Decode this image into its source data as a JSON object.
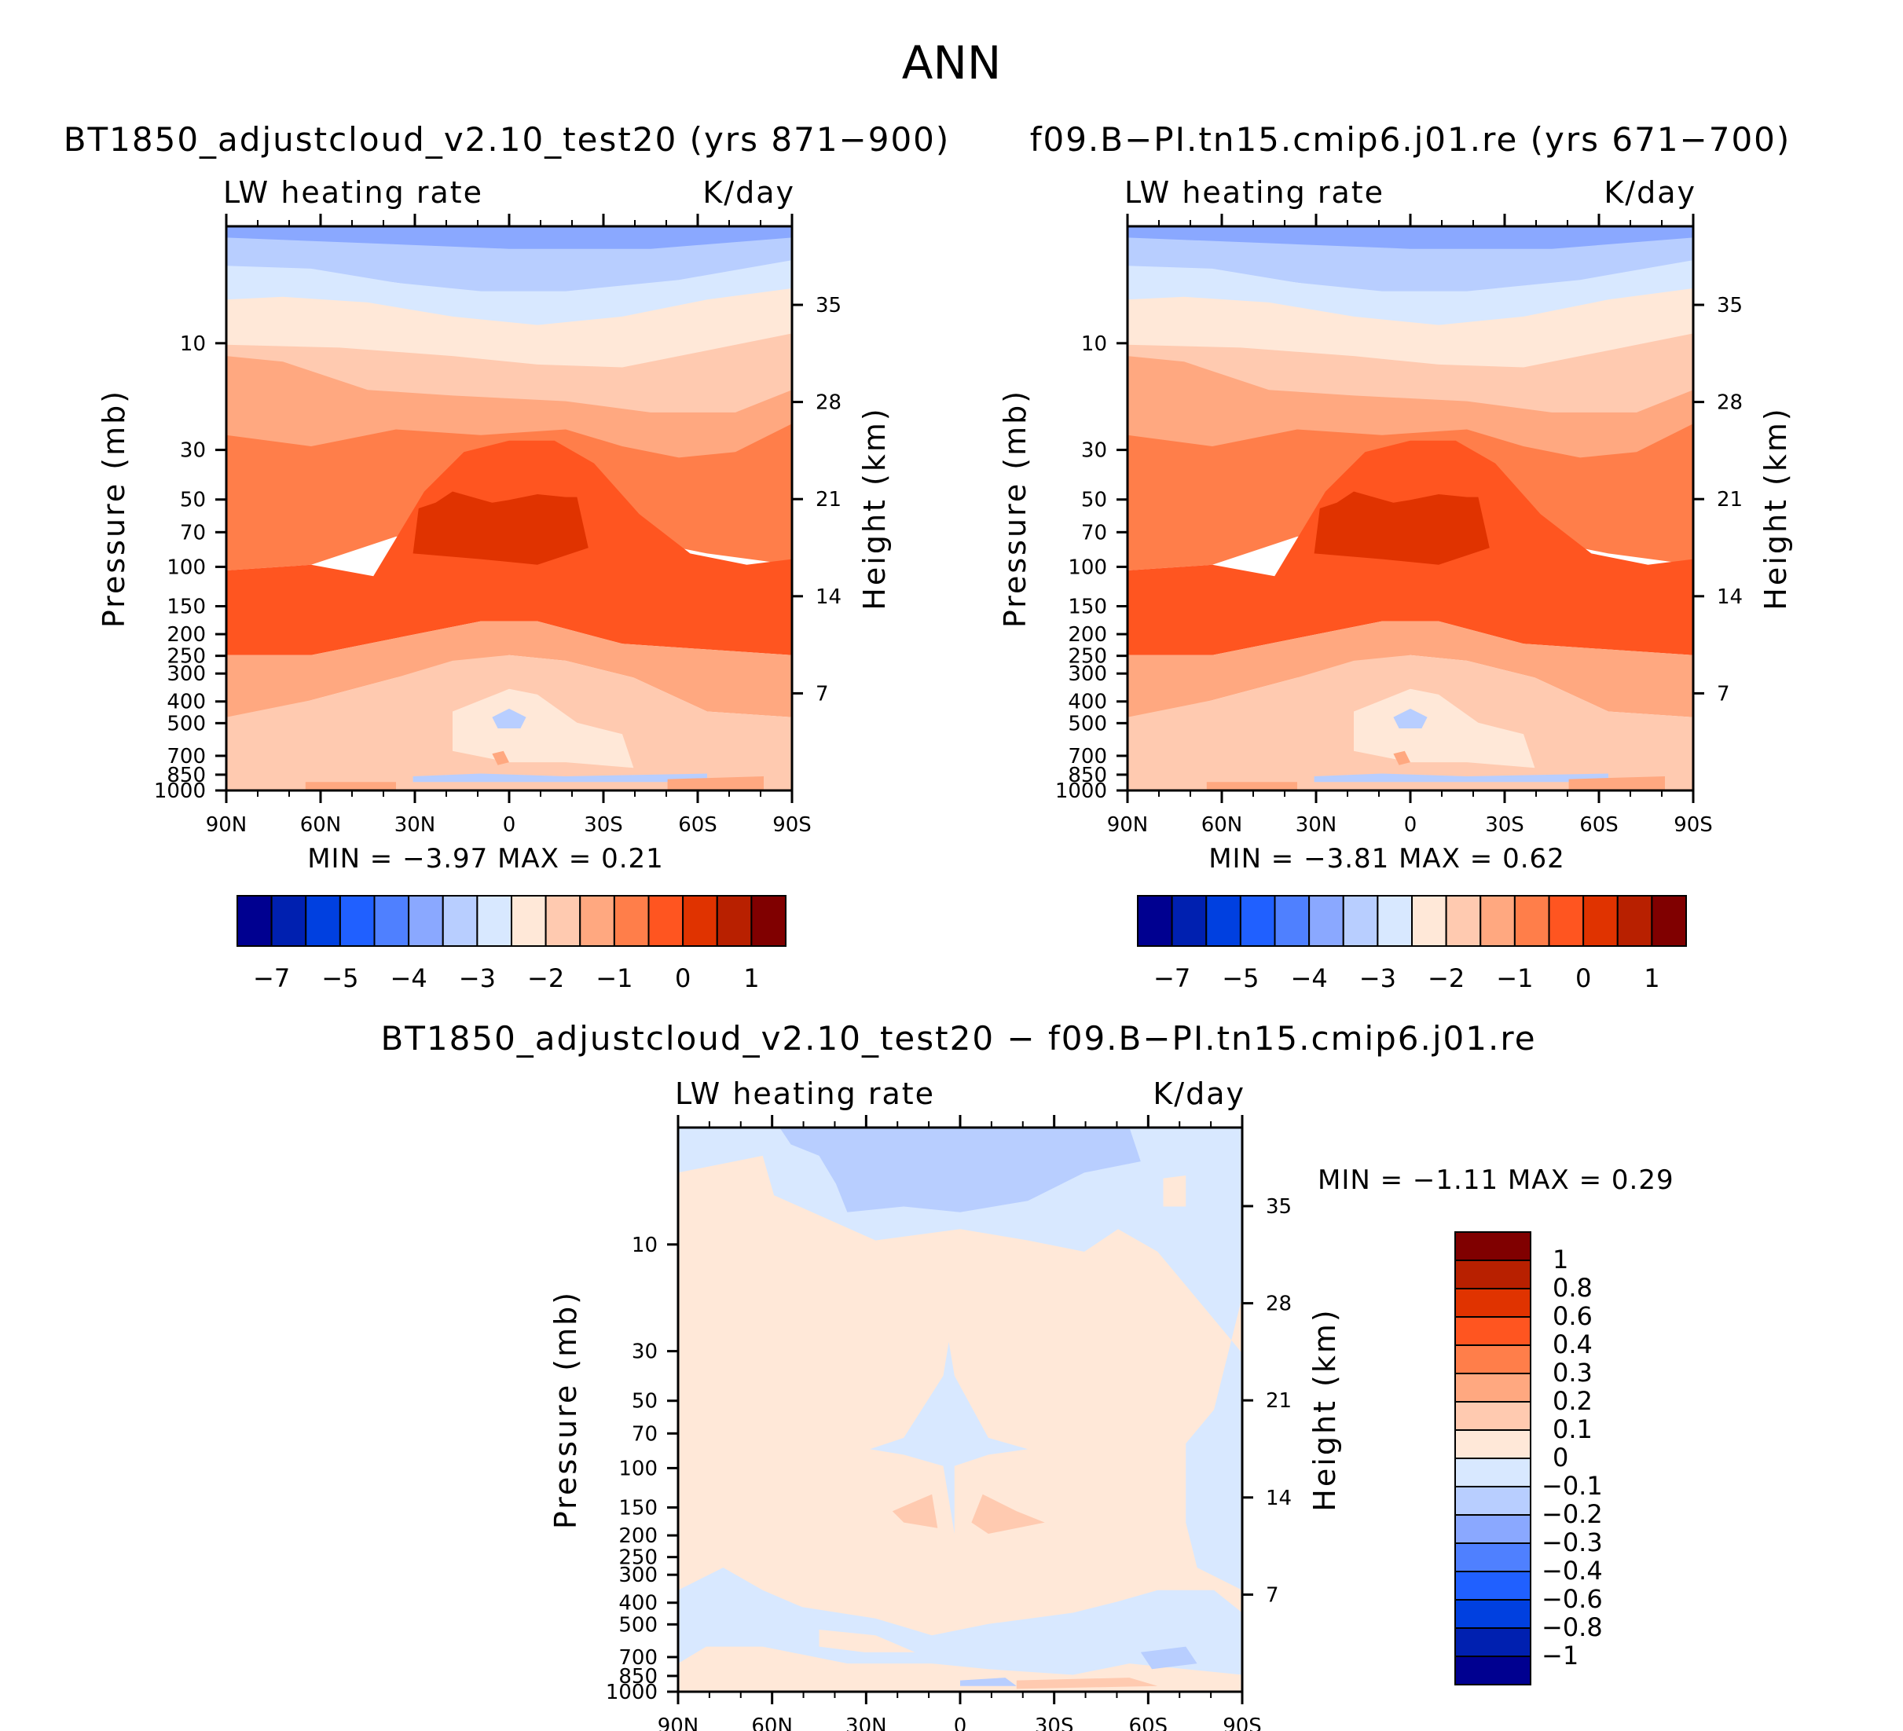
{
  "figure_title": "ANN",
  "panels": [
    {
      "id": "left",
      "title": "BT1850_adjustcloud_v2.10_test20 (yrs 871−900)",
      "left_subtitle": "LW heating rate",
      "right_subtitle": "K/day",
      "minmax_text": "MIN =   −3.97   MAX =    0.21",
      "x_ticks": [
        "90N",
        "60N",
        "30N",
        "0",
        "30S",
        "60S",
        "90S"
      ],
      "y_ticks": [
        "10",
        "30",
        "50",
        "70",
        "100",
        "150",
        "200",
        "250",
        "300",
        "400",
        "500",
        "700",
        "850",
        "1000"
      ],
      "y2_ticks": [
        "35",
        "28",
        "21",
        "14",
        "7"
      ],
      "ylabel": "Pressure (mb)",
      "y2label": "Height (km)",
      "colorbar_labels": [
        "−7",
        "−5",
        "−4",
        "−3",
        "−2",
        "−1",
        "0",
        "1"
      ]
    },
    {
      "id": "right",
      "title": "f09.B−PI.tn15.cmip6.j01.re (yrs 671−700)",
      "left_subtitle": "LW heating rate",
      "right_subtitle": "K/day",
      "minmax_text": "MIN =   −3.81   MAX =    0.62",
      "x_ticks": [
        "90N",
        "60N",
        "30N",
        "0",
        "30S",
        "60S",
        "90S"
      ],
      "y_ticks": [
        "10",
        "30",
        "50",
        "70",
        "100",
        "150",
        "200",
        "250",
        "300",
        "400",
        "500",
        "700",
        "850",
        "1000"
      ],
      "y2_ticks": [
        "35",
        "28",
        "21",
        "14",
        "7"
      ],
      "ylabel": "Pressure (mb)",
      "y2label": "Height (km)",
      "colorbar_labels": [
        "−7",
        "−5",
        "−4",
        "−3",
        "−2",
        "−1",
        "0",
        "1"
      ]
    },
    {
      "id": "diff",
      "title": "BT1850_adjustcloud_v2.10_test20 − f09.B−PI.tn15.cmip6.j01.re",
      "left_subtitle": "LW heating rate",
      "right_subtitle": "K/day",
      "minmax_text": "MIN =   −1.11   MAX =    0.29",
      "x_ticks": [
        "90N",
        "60N",
        "30N",
        "0",
        "30S",
        "60S",
        "90S"
      ],
      "y_ticks": [
        "10",
        "30",
        "50",
        "70",
        "100",
        "150",
        "200",
        "250",
        "300",
        "400",
        "500",
        "700",
        "850",
        "1000"
      ],
      "y2_ticks": [
        "35",
        "28",
        "21",
        "14",
        "7"
      ],
      "ylabel": "Pressure (mb)",
      "y2label": "Height (km)",
      "colorbar_labels": [
        "1",
        "0.8",
        "0.6",
        "0.4",
        "0.3",
        "0.2",
        "0.1",
        "0",
        "−0.1",
        "−0.2",
        "−0.3",
        "−0.4",
        "−0.6",
        "−0.8",
        "−1"
      ]
    }
  ],
  "chart_data": [
    {
      "type": "heatmap",
      "title": "BT1850_adjustcloud_v2.10_test20 (yrs 871−900)",
      "variable": "LW heating rate",
      "units": "K/day",
      "xlabel": "",
      "ylabel": "Pressure (mb)",
      "y2label": "Height (km)",
      "xlim": [
        -90,
        90
      ],
      "ylim_mb": [
        1000,
        3
      ],
      "min": -3.97,
      "max": 0.21,
      "contour_levels": [
        -7,
        -6,
        -5,
        -4.5,
        -4,
        -3.5,
        -3,
        -2.5,
        -2,
        -1.5,
        -1,
        -0.5,
        0,
        0.5,
        1
      ],
      "approx_profile_equator": {
        "pressure_mb": [
          3,
          5,
          10,
          20,
          40,
          80,
          100,
          150,
          250,
          400,
          600,
          850,
          1000
        ],
        "value_k_per_day": [
          -2.8,
          -2.7,
          -2.0,
          -1.6,
          -1.1,
          -0.4,
          -0.3,
          -0.8,
          -1.4,
          -1.7,
          -2.0,
          -1.5,
          -1.2
        ]
      }
    },
    {
      "type": "heatmap",
      "title": "f09.B−PI.tn15.cmip6.j01.re (yrs 671−700)",
      "variable": "LW heating rate",
      "units": "K/day",
      "xlabel": "",
      "ylabel": "Pressure (mb)",
      "y2label": "Height (km)",
      "xlim": [
        -90,
        90
      ],
      "ylim_mb": [
        1000,
        3
      ],
      "min": -3.81,
      "max": 0.62,
      "contour_levels": [
        -7,
        -6,
        -5,
        -4.5,
        -4,
        -3.5,
        -3,
        -2.5,
        -2,
        -1.5,
        -1,
        -0.5,
        0,
        0.5,
        1
      ],
      "approx_profile_equator": {
        "pressure_mb": [
          3,
          5,
          10,
          20,
          40,
          80,
          100,
          150,
          250,
          400,
          600,
          850,
          1000
        ],
        "value_k_per_day": [
          -2.7,
          -2.6,
          -2.0,
          -1.6,
          -1.1,
          -0.4,
          -0.3,
          -0.8,
          -1.4,
          -1.7,
          -2.0,
          -1.5,
          -1.2
        ]
      }
    },
    {
      "type": "heatmap",
      "title": "BT1850_adjustcloud_v2.10_test20 − f09.B−PI.tn15.cmip6.j01.re",
      "variable": "LW heating rate",
      "units": "K/day",
      "xlabel": "",
      "ylabel": "Pressure (mb)",
      "y2label": "Height (km)",
      "xlim": [
        -90,
        90
      ],
      "ylim_mb": [
        1000,
        3
      ],
      "min": -1.11,
      "max": 0.29,
      "contour_levels": [
        -1,
        -0.8,
        -0.6,
        -0.4,
        -0.3,
        -0.2,
        -0.1,
        0,
        0.1,
        0.2,
        0.3,
        0.4,
        0.6,
        0.8,
        1
      ],
      "approx_profile_equator": {
        "pressure_mb": [
          3,
          10,
          30,
          100,
          200,
          500,
          1000
        ],
        "value_k_per_day": [
          -0.15,
          -0.05,
          0.05,
          -0.05,
          0.05,
          0.05,
          0.05
        ]
      }
    }
  ],
  "colors": {
    "abs_fill": [
      "#000090",
      "#0020b0",
      "#0040e0",
      "#2060ff",
      "#4f80ff",
      "#8aa8ff",
      "#b8ceff",
      "#d8e8ff",
      "#ffe8d8",
      "#ffcab0",
      "#ffa880",
      "#ff7e4a",
      "#ff5520",
      "#e03300",
      "#b82000",
      "#800000"
    ],
    "diff_fill": [
      "#000090",
      "#0020b0",
      "#0040e0",
      "#2060ff",
      "#4f80ff",
      "#8aa8ff",
      "#b8ceff",
      "#d8e8ff",
      "#ffe8d8",
      "#ffcab0",
      "#ffa880",
      "#ff7e4a",
      "#ff5520",
      "#e03300",
      "#b82000",
      "#800000"
    ]
  }
}
